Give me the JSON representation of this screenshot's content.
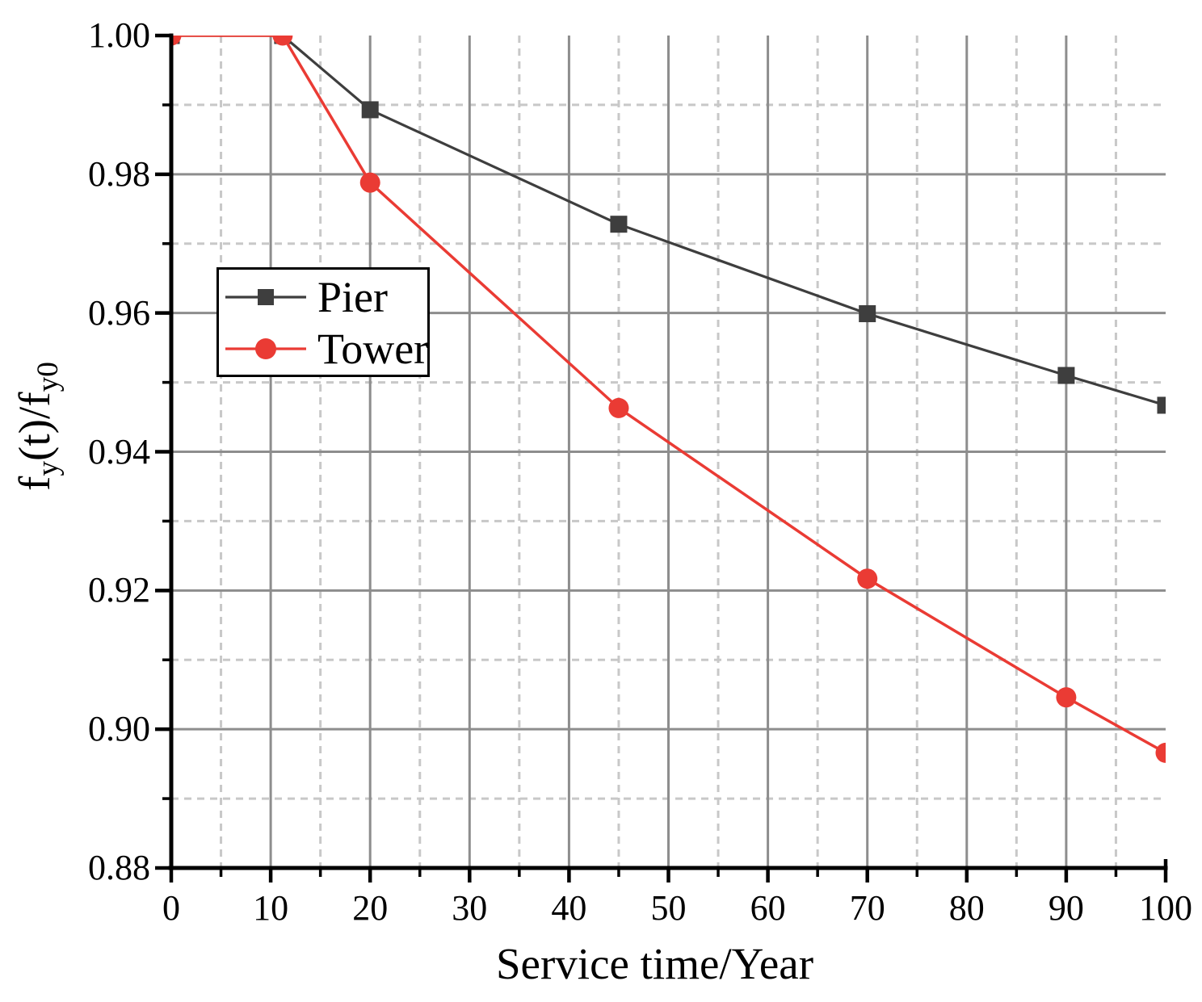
{
  "figure": {
    "background": "#ffffff"
  },
  "chart_data": {
    "type": "line",
    "title": "",
    "xlabel": "Service time/Year",
    "ylabel": "f_y(t)/f_y0",
    "ylabel_rich": [
      {
        "text": "f"
      },
      {
        "text": "y",
        "sub": true
      },
      {
        "text": "(t)/f"
      },
      {
        "text": "y0",
        "sub": true
      }
    ],
    "xlim": [
      0,
      100
    ],
    "ylim": [
      0.88,
      1.0
    ],
    "x_major_ticks": [
      0,
      10,
      20,
      30,
      40,
      50,
      60,
      70,
      80,
      90,
      100
    ],
    "x_tick_labels": [
      "0",
      "10",
      "20",
      "30",
      "40",
      "50",
      "60",
      "70",
      "80",
      "90",
      "100"
    ],
    "x_minor_ticks": [
      5,
      15,
      25,
      35,
      45,
      55,
      65,
      75,
      85,
      95
    ],
    "y_major_ticks": [
      1.0,
      0.98,
      0.96,
      0.94,
      0.92,
      0.9,
      0.88
    ],
    "y_tick_labels": [
      "1.00",
      "0.98",
      "0.96",
      "0.94",
      "0.92",
      "0.90",
      "0.88"
    ],
    "y_minor_ticks": [
      0.99,
      0.97,
      0.95,
      0.93,
      0.91,
      0.89
    ],
    "grid": {
      "on": true,
      "major_color": "#8d8d8d",
      "minor_color": "#c8c8c8",
      "minor_style": "dashed"
    },
    "axis_color": "#000000",
    "legend": {
      "position": "inside-upper-left",
      "entries": [
        "Pier",
        "Tower"
      ]
    },
    "series": [
      {
        "name": "Pier",
        "color": "#3e3e3e",
        "marker": "square",
        "line_width": 3.2,
        "x": [
          0,
          11.2,
          20,
          45,
          70,
          90,
          100
        ],
        "y": [
          1.0,
          1.0,
          0.9893,
          0.9728,
          0.9599,
          0.951,
          0.9467
        ]
      },
      {
        "name": "Tower",
        "color": "#ea3b34",
        "marker": "circle",
        "line_width": 3.5,
        "x": [
          0,
          11.2,
          20,
          45,
          70,
          90,
          100
        ],
        "y": [
          1.0,
          1.0,
          0.9788,
          0.9463,
          0.9217,
          0.9046,
          0.8966
        ]
      }
    ]
  }
}
